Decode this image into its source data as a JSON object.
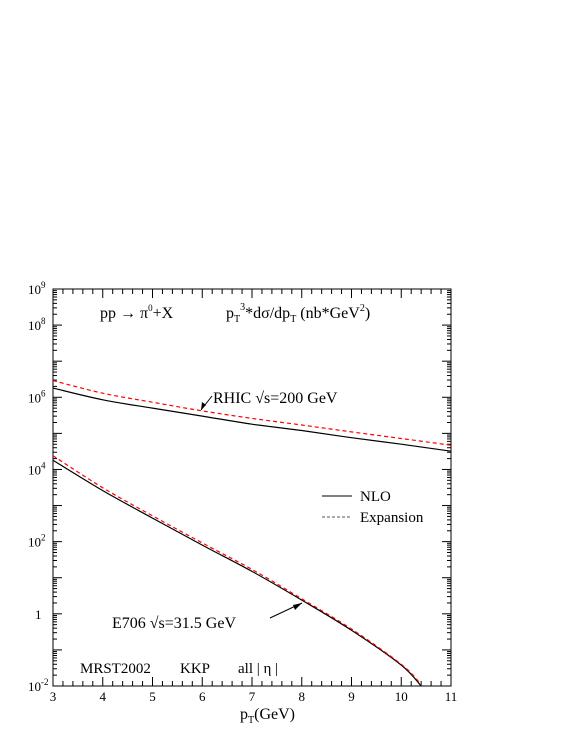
{
  "chart_data": {
    "type": "line",
    "title": "pp → π⁰+X",
    "quantity": "pT³*dσ/dpT (nb*GeV²)",
    "xlabel": "pT(GeV)",
    "xlim": [
      3,
      11
    ],
    "ylim": [
      0.01,
      1000000000
    ],
    "yscale": "log",
    "x_ticks": [
      "3",
      "4",
      "5",
      "6",
      "7",
      "8",
      "9",
      "10",
      "11"
    ],
    "y_ticks": [
      {
        "base": "10",
        "exp": "9",
        "value": 1000000000
      },
      {
        "base": "10",
        "exp": "8",
        "value": 100000000
      },
      {
        "base": "10",
        "exp": "6",
        "value": 1000000
      },
      {
        "base": "10",
        "exp": "4",
        "value": 10000
      },
      {
        "base": "10",
        "exp": "2",
        "value": 100
      },
      {
        "base": "1",
        "exp": "",
        "value": 1
      },
      {
        "base": "10",
        "exp": "-2",
        "value": 0.01
      }
    ],
    "legend": {
      "position": "right",
      "entries": [
        {
          "label": "NLO",
          "style": "solid",
          "color": "#000000"
        },
        {
          "label": "Expansion",
          "style": "dashed",
          "color": "#555555"
        }
      ]
    },
    "groups": [
      {
        "label": "RHIC √s=200 GeV",
        "series": [
          {
            "style": "solid",
            "color": "#000000",
            "x": [
              3,
              4,
              5,
              6,
              7,
              8,
              9,
              10,
              11
            ],
            "y": [
              1800000,
              850000,
              500000,
              300000,
              180000,
              120000,
              76000,
              50000,
              32000
            ]
          },
          {
            "style": "dashed",
            "color": "#ff0000",
            "x": [
              3,
              4,
              5,
              6,
              7,
              8,
              9,
              10,
              11
            ],
            "y": [
              2900000,
              1300000,
              730000,
              420000,
              260000,
              170000,
              110000,
              72000,
              47000
            ]
          }
        ]
      },
      {
        "label": "E706 √s=31.5 GeV",
        "series": [
          {
            "style": "solid",
            "color": "#000000",
            "x": [
              3,
              4,
              5,
              6,
              7,
              8,
              9,
              10,
              10.4
            ],
            "y": [
              18000,
              2600,
              450,
              80,
              15,
              2.4,
              0.35,
              0.038,
              0.01
            ]
          },
          {
            "style": "dashed",
            "color": "#ff0000",
            "x": [
              3,
              4,
              5,
              6,
              7,
              8,
              9,
              10,
              10.4
            ],
            "y": [
              24000,
              3100,
              520,
              92,
              17,
              2.6,
              0.38,
              0.04,
              0.011
            ]
          }
        ]
      }
    ],
    "footer": {
      "pdf": "MRST2002",
      "ff": "KKP",
      "cut": "all | η |"
    }
  }
}
